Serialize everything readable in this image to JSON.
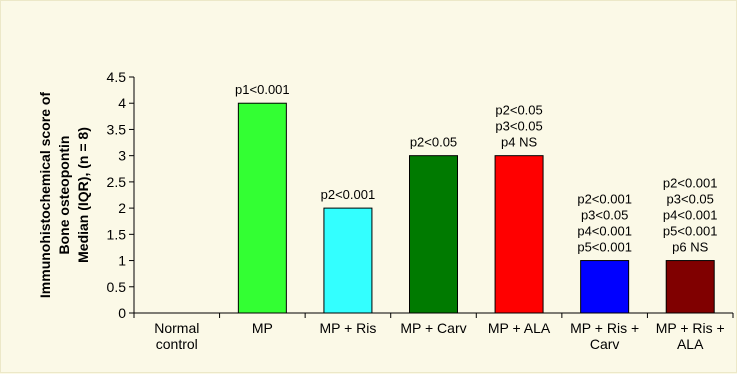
{
  "chart_data": {
    "type": "bar",
    "ylabel_lines": [
      "Immunohistochemical score of",
      "Bone osteopontin",
      "Median (IQR), (n = 8)"
    ],
    "ylim": [
      0,
      4.5
    ],
    "yticks": [
      "0",
      "0.5",
      "1",
      "1.5",
      "2",
      "2.5",
      "3",
      "3.5",
      "4",
      "4.5"
    ],
    "grid": false,
    "legend": "none",
    "categories": [
      [
        "Normal",
        "control"
      ],
      [
        "MP"
      ],
      [
        "MP + Ris"
      ],
      [
        "MP + Carv"
      ],
      [
        "MP + ALA"
      ],
      [
        "MP + Ris +",
        "Carv"
      ],
      [
        "MP + Ris +",
        "ALA"
      ]
    ],
    "values": [
      0,
      4,
      2,
      3,
      3,
      1,
      1
    ],
    "colors": [
      "#ffffff",
      "#33ff33",
      "#33ffff",
      "#007a00",
      "#ff0000",
      "#0000ff",
      "#800000"
    ],
    "annotations": [
      [],
      [
        "p1<0.001"
      ],
      [
        "p2<0.001"
      ],
      [
        "p2<0.05"
      ],
      [
        "p2<0.05",
        "p3<0.05",
        "p4 NS"
      ],
      [
        "p2<0.001",
        "p3<0.05",
        "p4<0.001",
        "p5<0.001"
      ],
      [
        "p2<0.001",
        "p3<0.05",
        "p4<0.001",
        "p5<0.001",
        "p6 NS"
      ]
    ]
  }
}
